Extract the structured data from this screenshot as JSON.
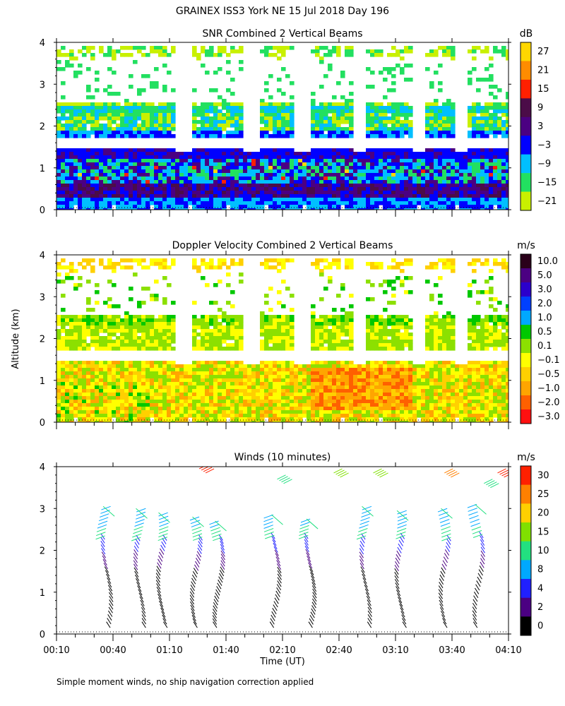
{
  "title": "GRAINEX ISS3 York NE  15 Jul 2018 Day 196",
  "footnote": "Simple moment winds, no ship navigation correction applied",
  "ylabel": "Altitude (km)",
  "xlabel": "Time (UT)",
  "panels": {
    "snr": {
      "title": "SNR Combined 2 Vertical Beams",
      "unit": "dB",
      "colorbar": {
        "labels": [
          "27",
          "21",
          "15",
          "9",
          "3",
          "−3",
          "−9",
          "−15",
          "−21"
        ],
        "colors": [
          "#ffd700",
          "#ff8c00",
          "#ff2000",
          "#4b0c48",
          "#4b0082",
          "#0000ff",
          "#00bfff",
          "#22e060",
          "#c8f000"
        ]
      }
    },
    "doppler": {
      "title": "Doppler Velocity Combined 2 Vertical Beams",
      "unit": "m/s",
      "colorbar": {
        "labels": [
          "10.0",
          "5.0",
          "3.0",
          "2.0",
          "1.0",
          "0.5",
          "0.1",
          "−0.1",
          "−0.5",
          "−1.0",
          "−2.0",
          "−3.0"
        ],
        "colors": [
          "#2a001a",
          "#4b0082",
          "#2b00cc",
          "#0040ff",
          "#00a8ff",
          "#00c800",
          "#8ce000",
          "#ffff00",
          "#ffd000",
          "#ffa500",
          "#ff6000",
          "#ff1010"
        ]
      }
    },
    "winds": {
      "title": "Winds (10 minutes)",
      "unit": "m/s",
      "colorbar": {
        "labels": [
          "30",
          "25",
          "20",
          "15",
          "10",
          "8",
          "4",
          "2",
          "0"
        ],
        "colors": [
          "#ff2000",
          "#ff8000",
          "#ffd000",
          "#80e000",
          "#22e080",
          "#00a8ff",
          "#2020ff",
          "#4b0082",
          "#000000"
        ]
      }
    }
  },
  "chart_data": {
    "type": "heatmap",
    "x_tick_labels": [
      "00:10",
      "00:40",
      "01:10",
      "01:40",
      "02:10",
      "02:40",
      "03:10",
      "03:40",
      "04:10"
    ],
    "x_range_hours": [
      0.1667,
      4.1667
    ],
    "y_tick_labels": [
      "0",
      "1",
      "2",
      "3",
      "4"
    ],
    "y_range_km": [
      0,
      4
    ],
    "wind_profile_times_hours": [
      0.63,
      0.92,
      1.12,
      1.42,
      1.62,
      2.12,
      2.43,
      2.92,
      3.23,
      3.62,
      3.92
    ],
    "wind_profiles": [
      {
        "time": 0.63,
        "top_km": 3.05
      },
      {
        "time": 0.92,
        "top_km": 3.0
      },
      {
        "time": 1.12,
        "top_km": 2.9
      },
      {
        "time": 1.42,
        "top_km": 2.8
      },
      {
        "time": 1.62,
        "top_km": 2.7
      },
      {
        "time": 2.12,
        "top_km": 2.85
      },
      {
        "time": 2.43,
        "top_km": 2.75
      },
      {
        "time": 2.92,
        "top_km": 3.05
      },
      {
        "time": 3.23,
        "top_km": 2.95
      },
      {
        "time": 3.62,
        "top_km": 3.0
      },
      {
        "time": 3.92,
        "top_km": 3.1
      }
    ]
  }
}
